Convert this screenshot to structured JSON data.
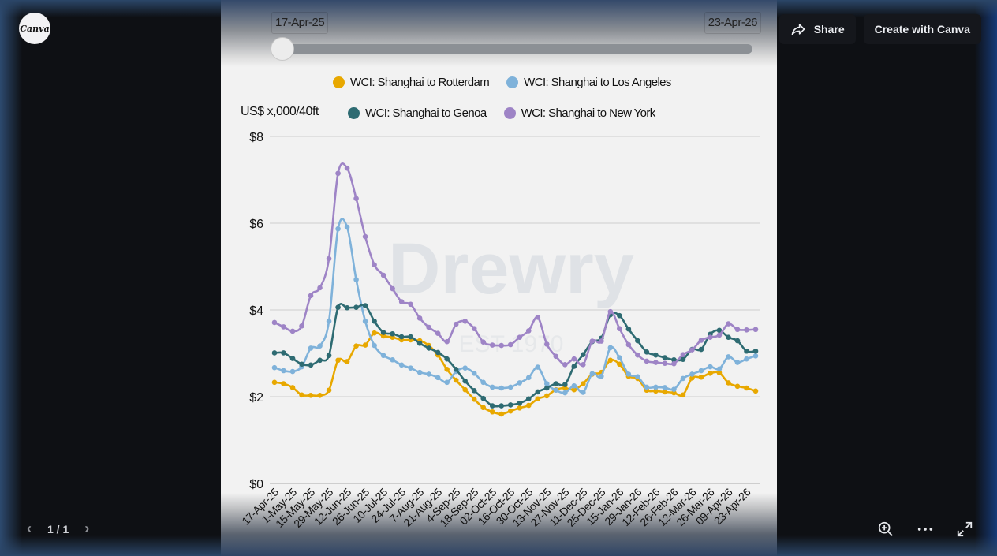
{
  "app": {
    "logo_text": "Canva"
  },
  "top_actions": {
    "share_label": "Share",
    "create_label": "Create with Canva"
  },
  "slider": {
    "start_date": "17-Apr-25",
    "end_date": "23-Apr-26"
  },
  "pager": {
    "text": "1 / 1"
  },
  "bottom_tools": {
    "zoom": "zoom-in",
    "more": "more",
    "fullscreen": "fullscreen"
  },
  "watermark": {
    "brand": "Drewry",
    "tagline": "EST 1970"
  },
  "chart_data": {
    "type": "line",
    "title": "",
    "ylabel": "US$ x,000/40ft",
    "xlabel": "",
    "ylim": [
      0,
      8
    ],
    "yticks": [
      "$0",
      "$2",
      "$4",
      "$6",
      "$8"
    ],
    "grid": true,
    "legend_position": "top",
    "x": [
      "17-Apr-25",
      "24-Apr-25",
      "1-May-25",
      "8-May-25",
      "15-May-25",
      "22-May-25",
      "29-May-25",
      "5-Jun-25",
      "12-Jun-25",
      "19-Jun-25",
      "26-Jun-25",
      "3-Jul-25",
      "10-Jul-25",
      "17-Jul-25",
      "24-Jul-25",
      "31-Jul-25",
      "7-Aug-25",
      "14-Aug-25",
      "21-Aug-25",
      "28-Aug-25",
      "4-Sep-25",
      "11-Sep-25",
      "18-Sep-25",
      "25-Sep-25",
      "02-Oct-25",
      "09-Oct-25",
      "16-Oct-25",
      "23-Oct-25",
      "30-Oct-25",
      "06-Nov-25",
      "13-Nov-25",
      "20-Nov-25",
      "27-Nov-25",
      "04-Dec-25",
      "11-Dec-25",
      "18-Dec-25",
      "25-Dec-25",
      "01-Jan-26",
      "08-Jan-26",
      "15-Jan-26",
      "22-Jan-26",
      "29-Jan-26",
      "05-Feb-26",
      "12-Feb-26",
      "19-Feb-26",
      "26-Feb-26",
      "05-Mar-26",
      "12-Mar-26",
      "19-Mar-26",
      "26-Mar-26",
      "02-Apr-26",
      "09-Apr-26",
      "16-Apr-26",
      "23-Apr-26"
    ],
    "xtick_labels": [
      "17-Apr-25",
      "1-May-25",
      "15-May-25",
      "29-May-25",
      "12-Jun-25",
      "26-Jun-25",
      "10-Jul-25",
      "24-Jul-25",
      "7-Aug-25",
      "21-Aug-25",
      "4-Sep-25",
      "18-Sep-25",
      "02-Oct-25",
      "16-Oct-25",
      "30-Oct-25",
      "13-Nov-25",
      "27-Nov-25",
      "11-Dec-25",
      "25-Dec-25",
      "15-Jan-26",
      "29-Jan-26",
      "12-Feb-26",
      "26-Feb-26",
      "12-Mar-26",
      "26-Mar-26",
      "09-Apr-26",
      "23-Apr-26"
    ],
    "series": [
      {
        "name": "WCI: Shanghai to Rotterdam",
        "color": "#e8a800",
        "values": [
          2.33,
          2.3,
          2.21,
          2.04,
          2.03,
          2.03,
          2.15,
          2.84,
          2.81,
          3.17,
          3.19,
          3.47,
          3.4,
          3.37,
          3.31,
          3.31,
          3.29,
          3.18,
          2.96,
          2.63,
          2.38,
          2.16,
          1.94,
          1.75,
          1.65,
          1.6,
          1.67,
          1.74,
          1.8,
          1.95,
          2.02,
          2.16,
          2.2,
          2.16,
          2.3,
          2.52,
          2.56,
          2.84,
          2.75,
          2.47,
          2.42,
          2.15,
          2.13,
          2.11,
          2.09,
          2.04,
          2.43,
          2.45,
          2.54,
          2.55,
          2.32,
          2.24,
          2.2,
          2.13
        ]
      },
      {
        "name": "WCI: Shanghai to Los Angeles",
        "color": "#7fb2da",
        "values": [
          2.67,
          2.6,
          2.58,
          2.69,
          3.12,
          3.17,
          3.74,
          5.87,
          5.91,
          4.7,
          3.74,
          3.18,
          2.95,
          2.85,
          2.73,
          2.66,
          2.56,
          2.52,
          2.44,
          2.33,
          2.58,
          2.66,
          2.54,
          2.33,
          2.22,
          2.2,
          2.22,
          2.32,
          2.44,
          2.68,
          2.3,
          2.15,
          2.09,
          2.25,
          2.1,
          2.53,
          2.47,
          3.13,
          2.9,
          2.52,
          2.46,
          2.22,
          2.22,
          2.21,
          2.17,
          2.42,
          2.52,
          2.6,
          2.69,
          2.64,
          2.92,
          2.79,
          2.87,
          2.94
        ]
      },
      {
        "name": "WCI: Shanghai to Genoa",
        "color": "#2e6b72",
        "values": [
          3.01,
          3.01,
          2.88,
          2.75,
          2.73,
          2.84,
          2.95,
          4.06,
          4.05,
          4.06,
          4.1,
          3.74,
          3.48,
          3.45,
          3.38,
          3.38,
          3.23,
          3.12,
          3.02,
          2.87,
          2.63,
          2.36,
          2.14,
          1.96,
          1.79,
          1.79,
          1.81,
          1.85,
          1.95,
          2.11,
          2.2,
          2.3,
          2.28,
          2.7,
          2.97,
          3.27,
          3.35,
          3.89,
          3.87,
          3.56,
          3.29,
          3.03,
          2.96,
          2.9,
          2.85,
          2.86,
          3.09,
          3.09,
          3.44,
          3.53,
          3.37,
          3.29,
          3.05,
          3.05
        ]
      },
      {
        "name": "WCI: Shanghai to New York",
        "color": "#9e84c6",
        "values": [
          3.71,
          3.61,
          3.51,
          3.63,
          4.33,
          4.51,
          5.18,
          7.15,
          7.27,
          6.57,
          5.69,
          5.04,
          4.8,
          4.49,
          4.19,
          4.13,
          3.81,
          3.6,
          3.46,
          3.27,
          3.67,
          3.74,
          3.57,
          3.26,
          3.19,
          3.18,
          3.2,
          3.37,
          3.52,
          3.83,
          3.21,
          2.93,
          2.74,
          2.87,
          2.74,
          3.28,
          3.28,
          3.96,
          3.57,
          3.2,
          2.96,
          2.82,
          2.79,
          2.77,
          2.76,
          2.97,
          3.08,
          3.3,
          3.37,
          3.42,
          3.68,
          3.55,
          3.54,
          3.55
        ]
      }
    ]
  }
}
